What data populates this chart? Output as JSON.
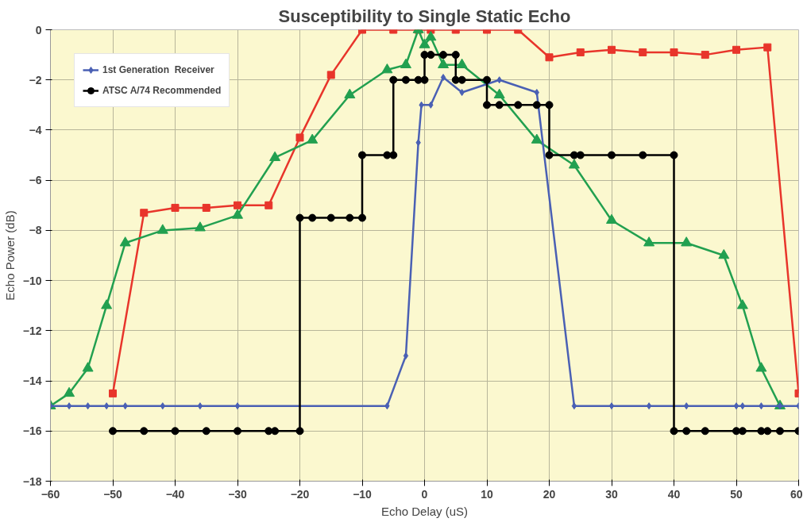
{
  "chart_data": {
    "type": "line",
    "title": "Susceptibility to Single Static Echo",
    "xlabel": "Echo Delay (uS)",
    "ylabel": "Echo Power (dB)",
    "xlim": [
      -60,
      60
    ],
    "xticks": [
      -60,
      -50,
      -40,
      -30,
      -20,
      -10,
      0,
      10,
      20,
      30,
      40,
      50,
      60
    ],
    "ylim": [
      -18,
      0
    ],
    "yticks": [
      -18,
      -16,
      -14,
      -12,
      -10,
      -8,
      -6,
      -4,
      -2,
      0
    ],
    "grid": true,
    "legend": "top left",
    "line_style": "solid",
    "series": [
      {
        "color": "#e8352b",
        "marker": "square",
        "x": [
          -50,
          -45,
          -40,
          -35,
          -30,
          -25,
          -20,
          -15,
          -10,
          -5,
          -1,
          1,
          5,
          10,
          15,
          20,
          25,
          30,
          35,
          40,
          45,
          50,
          55,
          60
        ],
        "values": [
          -14.5,
          -7.3,
          -7.1,
          -7.1,
          -7.0,
          -7.0,
          -4.3,
          -1.8,
          0,
          0,
          0,
          0,
          0,
          0,
          0,
          -1.1,
          -0.9,
          -0.8,
          -0.9,
          -0.9,
          -1.0,
          -0.8,
          -0.7,
          -14.5
        ]
      },
      {
        "color": "#22a050",
        "marker": "triangle",
        "x": [
          -60,
          -57,
          -54,
          -51,
          -48,
          -42,
          -36,
          -30,
          -24,
          -18,
          -12,
          -6,
          -3,
          -1,
          0,
          1,
          3,
          6,
          12,
          18,
          24,
          30,
          36,
          42,
          48,
          51,
          54,
          57
        ],
        "values": [
          -15,
          -14.5,
          -13.5,
          -11,
          -8.5,
          -8.0,
          -7.9,
          -7.4,
          -5.1,
          -4.4,
          -2.6,
          -1.6,
          -1.4,
          0,
          -0.6,
          -0.3,
          -1.4,
          -1.4,
          -2.6,
          -4.4,
          -5.4,
          -7.6,
          -8.5,
          -8.5,
          -9.0,
          -11,
          -13.5,
          -15
        ]
      },
      {
        "name": "1st Generation  Receiver",
        "color": "#4a60b4",
        "marker": "diamond",
        "x": [
          -60,
          -57,
          -54,
          -51,
          -48,
          -42,
          -36,
          -30,
          -6,
          -3,
          -1,
          -0.5,
          1,
          3,
          6,
          12,
          18,
          24,
          30,
          36,
          42,
          50,
          51,
          54,
          57,
          60
        ],
        "values": [
          -15,
          -15,
          -15,
          -15,
          -15,
          -15,
          -15,
          -15,
          -15,
          -13,
          -4.5,
          -3,
          -3,
          -1.9,
          -2.5,
          -2,
          -2.5,
          -15,
          -15,
          -15,
          -15,
          -15,
          -15,
          -15,
          -15,
          -15
        ]
      },
      {
        "name": "ATSC A/74 Recommended",
        "color": "#000000",
        "marker": "circle",
        "x": [
          -50,
          -45,
          -40,
          -35,
          -30,
          -25,
          -24,
          -20,
          -20,
          -18,
          -15,
          -12,
          -10,
          -10,
          -6,
          -5,
          -5,
          -3,
          -1,
          0,
          0,
          1,
          3,
          5,
          5,
          6,
          10,
          10,
          12,
          15,
          18,
          20,
          20,
          24,
          25,
          30,
          35,
          40,
          40,
          42,
          45,
          50,
          51,
          54,
          55,
          57,
          60
        ],
        "values": [
          -16,
          -16,
          -16,
          -16,
          -16,
          -16,
          -16,
          -16,
          -7.5,
          -7.5,
          -7.5,
          -7.5,
          -7.5,
          -5,
          -5,
          -5,
          -2,
          -2,
          -2,
          -2,
          -1,
          -1,
          -1,
          -1,
          -2,
          -2,
          -2,
          -3,
          -3,
          -3,
          -3,
          -3,
          -5,
          -5,
          -5,
          -5,
          -5,
          -5,
          -16,
          -16,
          -16,
          -16,
          -16,
          -16,
          -16,
          -16,
          -16
        ]
      }
    ]
  }
}
